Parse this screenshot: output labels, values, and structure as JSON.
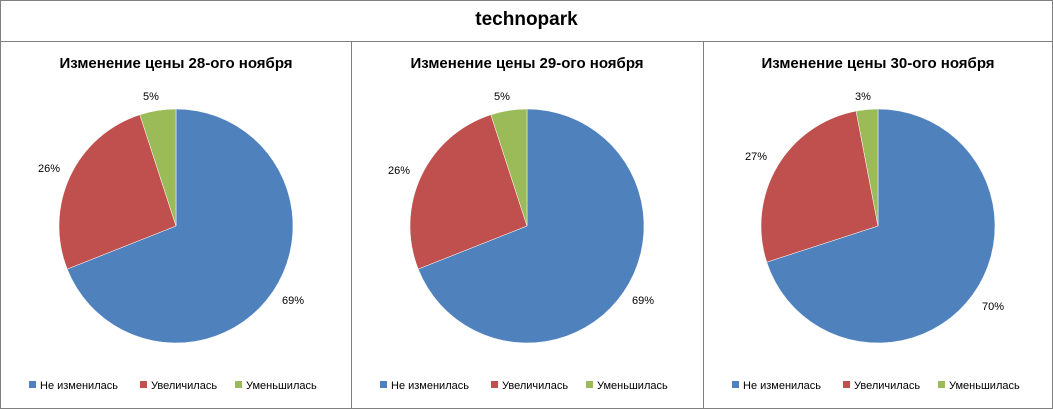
{
  "title": "technopark",
  "legend": [
    "Не изменилась",
    "Увеличилась",
    "Уменьшилась"
  ],
  "colors": [
    "#4F81BD",
    "#C0504D",
    "#9BBB59"
  ],
  "chart_data": [
    {
      "type": "pie",
      "title": "Изменение цены 28-ого ноября",
      "categories": [
        "Не изменилась",
        "Увеличилась",
        "Уменьшилась"
      ],
      "values": [
        69,
        26,
        5
      ],
      "labels": [
        "69%",
        "26%",
        "5%"
      ]
    },
    {
      "type": "pie",
      "title": "Изменение цены 29-ого ноября",
      "categories": [
        "Не изменилась",
        "Увеличилась",
        "Уменьшилась"
      ],
      "values": [
        69,
        26,
        5
      ],
      "labels": [
        "69%",
        "26%",
        "5%"
      ]
    },
    {
      "type": "pie",
      "title": "Изменение цены 30-ого ноября",
      "categories": [
        "Не изменилась",
        "Увеличилась",
        "Уменьшилась"
      ],
      "values": [
        70,
        27,
        3
      ],
      "labels": [
        "70%",
        "27%",
        "3%"
      ]
    }
  ]
}
